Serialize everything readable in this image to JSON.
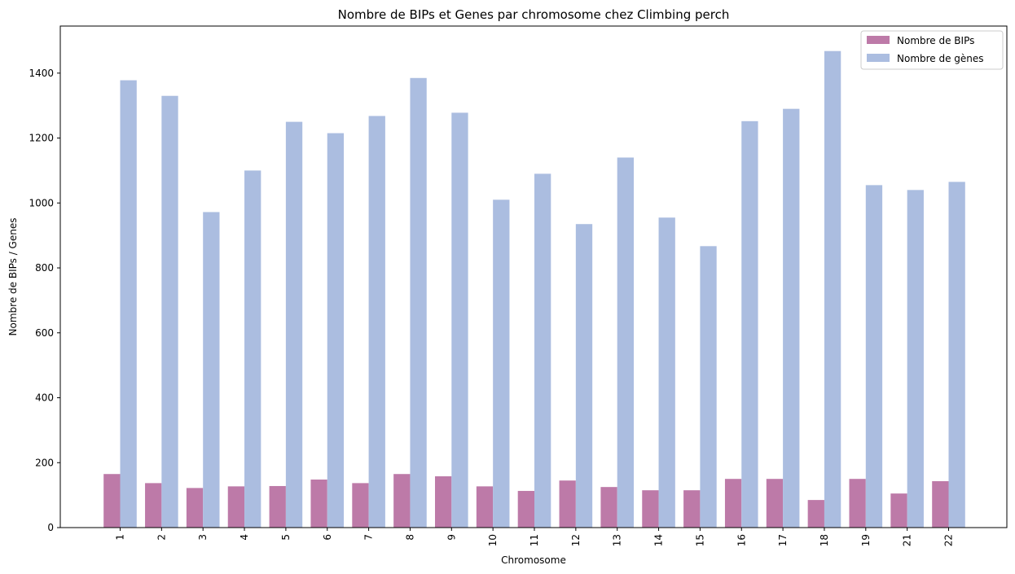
{
  "chart_data": {
    "type": "bar",
    "title": "Nombre de BIPs et Genes par chromosome chez Climbing perch",
    "xlabel": "Chromosome",
    "ylabel": "Nombre de BIPs / Genes",
    "ylim": [
      0,
      1545
    ],
    "yticks": [
      "0",
      "200",
      "400",
      "600",
      "800",
      "1000",
      "1200",
      "1400"
    ],
    "categories": [
      "1",
      "2",
      "3",
      "4",
      "5",
      "6",
      "7",
      "8",
      "9",
      "10",
      "11",
      "12",
      "13",
      "14",
      "15",
      "16",
      "17",
      "18",
      "19",
      "21",
      "22"
    ],
    "series": [
      {
        "name": "Nombre de BIPs",
        "color": "#bd7aa8",
        "values": [
          165,
          137,
          122,
          127,
          128,
          148,
          137,
          165,
          158,
          127,
          113,
          145,
          125,
          115,
          115,
          150,
          150,
          85,
          150,
          105,
          143
        ]
      },
      {
        "name": "Nombre de gènes",
        "color": "#abbde0",
        "values": [
          1378,
          1330,
          972,
          1100,
          1250,
          1215,
          1268,
          1385,
          1278,
          1010,
          1090,
          935,
          1140,
          955,
          867,
          1252,
          1290,
          1468,
          1055,
          1040,
          1065
        ]
      }
    ],
    "legend_position": "top-right",
    "grid": false
  }
}
